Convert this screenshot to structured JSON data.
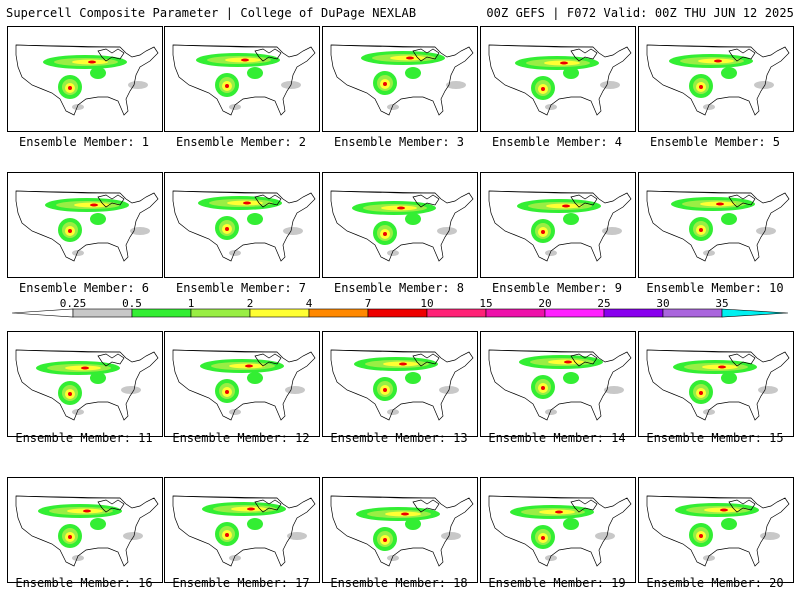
{
  "header": {
    "title": "Supercell Composite Parameter | College of DuPage NEXLAB",
    "run_info": "00Z GEFS | F072 Valid: 00Z THU JUN 12 2025"
  },
  "member_label_prefix": "Ensemble Member: ",
  "members": [
    {
      "id": "1",
      "label": "Ensemble Member: 1"
    },
    {
      "id": "2",
      "label": "Ensemble Member: 2"
    },
    {
      "id": "3",
      "label": "Ensemble Member: 3"
    },
    {
      "id": "4",
      "label": "Ensemble Member: 4"
    },
    {
      "id": "5",
      "label": "Ensemble Member: 5"
    },
    {
      "id": "6",
      "label": "Ensemble Member: 6"
    },
    {
      "id": "7",
      "label": "Ensemble Member: 7"
    },
    {
      "id": "8",
      "label": "Ensemble Member: 8"
    },
    {
      "id": "9",
      "label": "Ensemble Member: 9"
    },
    {
      "id": "10",
      "label": "Ensemble Member: 10"
    },
    {
      "id": "11",
      "label": "Ensemble Member: 11"
    },
    {
      "id": "12",
      "label": "Ensemble Member: 12"
    },
    {
      "id": "13",
      "label": "Ensemble Member: 13"
    },
    {
      "id": "14",
      "label": "Ensemble Member: 14"
    },
    {
      "id": "15",
      "label": "Ensemble Member: 15"
    },
    {
      "id": "16",
      "label": "Ensemble Member: 16"
    },
    {
      "id": "17",
      "label": "Ensemble Member: 17"
    },
    {
      "id": "18",
      "label": "Ensemble Member: 18"
    },
    {
      "id": "19",
      "label": "Ensemble Member: 19"
    },
    {
      "id": "20",
      "label": "Ensemble Member: 20"
    }
  ],
  "colorbar": {
    "labels": [
      "0.25",
      "0.5",
      "1",
      "2",
      "4",
      "7",
      "10",
      "15",
      "20",
      "25",
      "30",
      "35"
    ],
    "colors": [
      "#c8c8c8",
      "#33ee33",
      "#99ee44",
      "#ffff33",
      "#ff8800",
      "#ee0000",
      "#ff2277",
      "#ee11aa",
      "#ff22ff",
      "#8800ee",
      "#aa66dd",
      "#00f0f0"
    ]
  }
}
